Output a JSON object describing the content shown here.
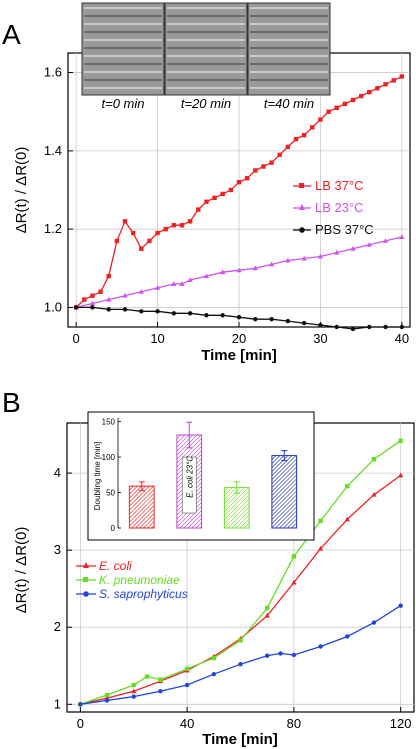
{
  "panels": {
    "A": {
      "letter": "A",
      "micrographs": [
        "t=0 min",
        "t=20 min",
        "t=40 min"
      ],
      "chart_data": {
        "type": "line",
        "xlabel": "Time [min]",
        "ylabel": "ΔR(t) / ΔR(0)",
        "xlim": [
          -1,
          41
        ],
        "ylim": [
          0.95,
          1.65
        ],
        "xticks": [
          "0",
          "10",
          "20",
          "30",
          "40"
        ],
        "yticks": [
          "1.0",
          "1.2",
          "1.4",
          "1.6"
        ],
        "ytick_values": [
          1.0,
          1.2,
          1.4,
          1.6
        ],
        "xtick_values": [
          0,
          10,
          20,
          30,
          40
        ],
        "grid": true,
        "legend_position": "right-middle",
        "series": [
          {
            "name": "LB 37°C",
            "color": "#ee2222",
            "marker": "square",
            "x": [
              0,
              1,
              2,
              3,
              4,
              5,
              6,
              7,
              8,
              9,
              10,
              11,
              12,
              13,
              14,
              15,
              16,
              17,
              18,
              19,
              20,
              21,
              22,
              23,
              24,
              25,
              26,
              27,
              28,
              29,
              30,
              31,
              32,
              33,
              34,
              35,
              36,
              37,
              38,
              39,
              40
            ],
            "y": [
              1.0,
              1.02,
              1.03,
              1.04,
              1.08,
              1.17,
              1.22,
              1.19,
              1.15,
              1.17,
              1.19,
              1.2,
              1.21,
              1.21,
              1.22,
              1.25,
              1.27,
              1.28,
              1.29,
              1.3,
              1.32,
              1.33,
              1.35,
              1.36,
              1.37,
              1.39,
              1.41,
              1.43,
              1.44,
              1.46,
              1.48,
              1.5,
              1.51,
              1.52,
              1.53,
              1.54,
              1.55,
              1.56,
              1.57,
              1.58,
              1.59
            ]
          },
          {
            "name": "LB 23°C",
            "color": "#cc55ee",
            "marker": "triangle",
            "x": [
              0,
              2,
              4,
              6,
              8,
              10,
              12,
              13,
              14,
              16,
              18,
              20,
              22,
              24,
              26,
              28,
              30,
              32,
              34,
              36,
              38,
              40
            ],
            "y": [
              1.0,
              1.01,
              1.02,
              1.03,
              1.04,
              1.05,
              1.06,
              1.06,
              1.07,
              1.08,
              1.09,
              1.095,
              1.1,
              1.11,
              1.12,
              1.125,
              1.13,
              1.14,
              1.15,
              1.16,
              1.17,
              1.18
            ]
          },
          {
            "name": "PBS 37°C",
            "color": "#111111",
            "marker": "circle",
            "x": [
              0,
              2,
              4,
              6,
              8,
              10,
              12,
              14,
              16,
              18,
              20,
              22,
              24,
              26,
              28,
              30,
              32,
              34,
              36,
              38,
              40
            ],
            "y": [
              1.0,
              1.0,
              0.995,
              0.995,
              0.99,
              0.99,
              0.985,
              0.985,
              0.98,
              0.98,
              0.975,
              0.97,
              0.97,
              0.965,
              0.96,
              0.955,
              0.95,
              0.945,
              0.95,
              0.95,
              0.95
            ]
          }
        ]
      }
    },
    "B": {
      "letter": "B",
      "chart_data": {
        "type": "line",
        "xlabel": "Time [min]",
        "ylabel": "ΔR(t) / ΔR(0)",
        "xlim": [
          -5,
          125
        ],
        "ylim": [
          0.9,
          4.65
        ],
        "xticks": [
          "0",
          "40",
          "80",
          "120"
        ],
        "xtick_values": [
          0,
          40,
          80,
          120
        ],
        "yticks": [
          "1",
          "2",
          "3",
          "4"
        ],
        "ytick_values": [
          1,
          2,
          3,
          4
        ],
        "grid": true,
        "legend_position": "middle-left",
        "series": [
          {
            "name": "E. coli",
            "color": "#ee2222",
            "marker": "triangle",
            "x": [
              0,
              10,
              20,
              30,
              40,
              50,
              60,
              70,
              80,
              90,
              100,
              110,
              120
            ],
            "y": [
              1.0,
              1.08,
              1.17,
              1.3,
              1.44,
              1.62,
              1.85,
              2.15,
              2.58,
              3.02,
              3.4,
              3.72,
              3.97
            ]
          },
          {
            "name": "K. pneumoniae",
            "color": "#66dd22",
            "marker": "square",
            "x": [
              0,
              10,
              20,
              25,
              30,
              40,
              50,
              60,
              70,
              80,
              90,
              100,
              110,
              120
            ],
            "y": [
              1.0,
              1.12,
              1.25,
              1.36,
              1.32,
              1.46,
              1.6,
              1.83,
              2.25,
              2.92,
              3.38,
              3.83,
              4.18,
              4.42
            ]
          },
          {
            "name": "S. saprophyticus",
            "color": "#2244dd",
            "marker": "circle",
            "x": [
              0,
              10,
              20,
              30,
              40,
              50,
              60,
              70,
              75,
              80,
              90,
              100,
              110,
              120
            ],
            "y": [
              1.0,
              1.05,
              1.1,
              1.17,
              1.25,
              1.39,
              1.52,
              1.63,
              1.66,
              1.64,
              1.75,
              1.88,
              2.06,
              2.28
            ]
          }
        ]
      },
      "inset": {
        "chart_data": {
          "type": "bar",
          "ylabel": "Doubling time [min]",
          "ylim": [
            0,
            155
          ],
          "yticks": [
            "0",
            "50",
            "100",
            "150"
          ],
          "ytick_values": [
            0,
            50,
            100,
            150
          ],
          "categories": [
            "E. coli",
            "E. coli 23°C",
            "K. pneumoniae",
            "S. saprophyticus"
          ],
          "values": [
            59,
            131,
            57,
            102
          ],
          "errors": [
            6,
            18,
            8,
            7
          ],
          "colors": [
            "#ee2222",
            "#bb44cc",
            "#77dd33",
            "#2233bb"
          ],
          "bar_annotation": "E. coli 23°C"
        }
      }
    }
  }
}
